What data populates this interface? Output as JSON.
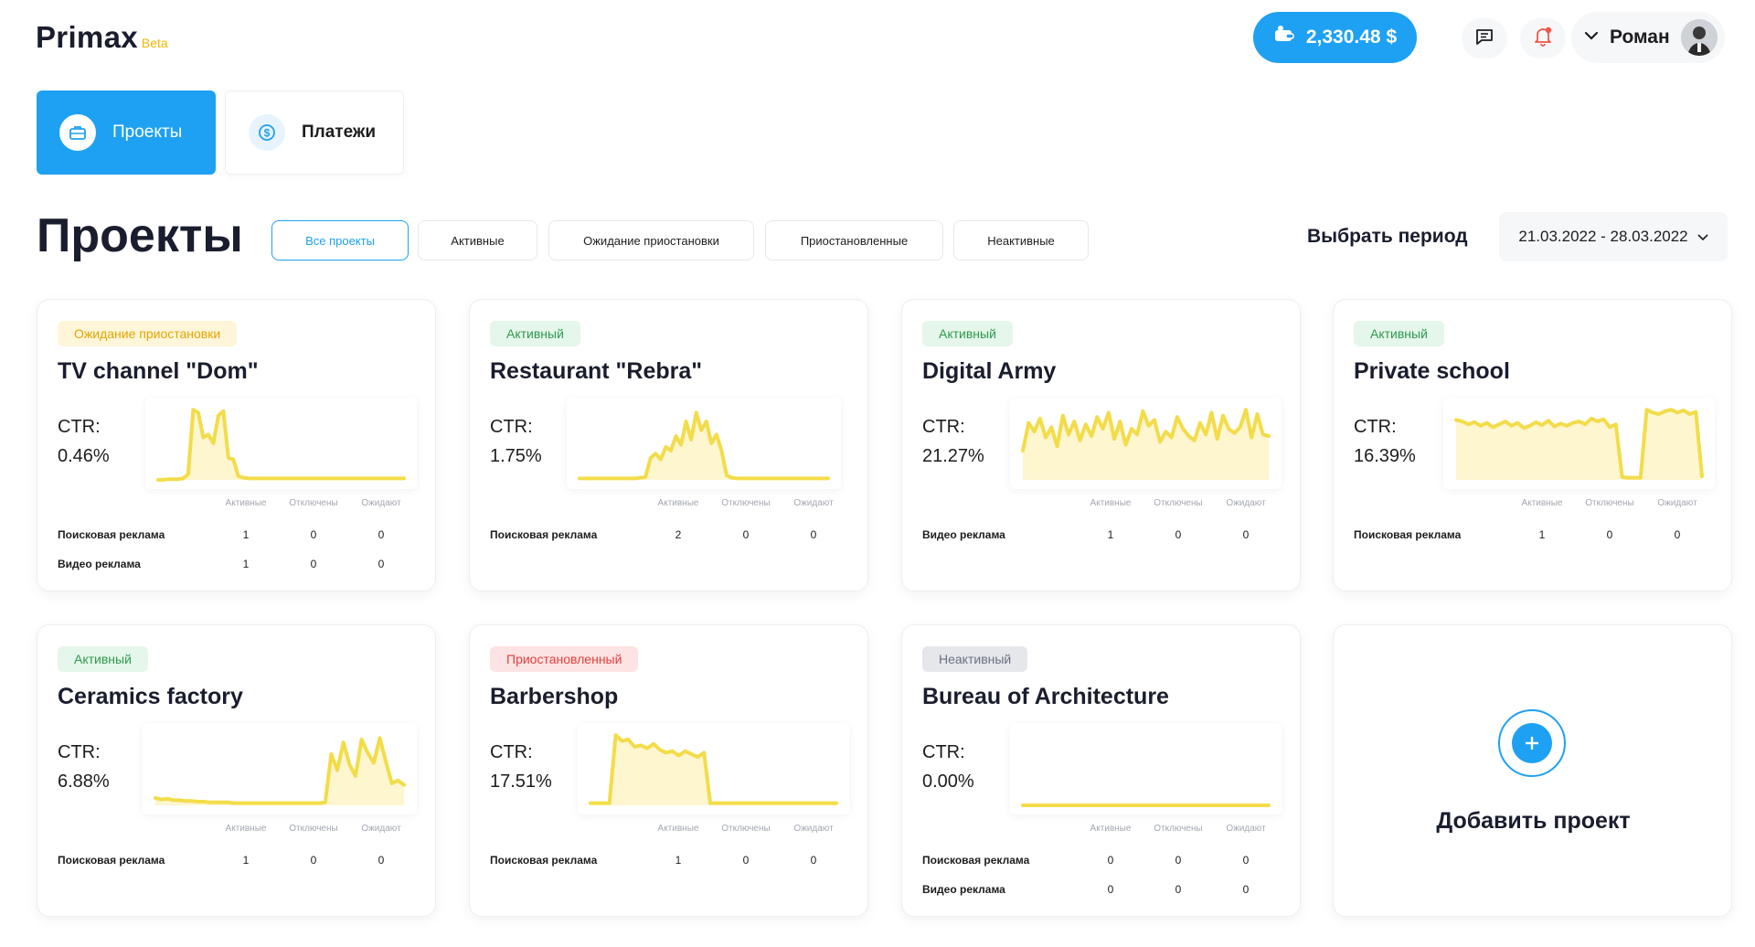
{
  "header": {
    "logo": "Primax",
    "logo_badge": "Beta",
    "balance": "2,330.48 $",
    "user_name": "Роман"
  },
  "nav": {
    "projects": "Проекты",
    "payments": "Платежи"
  },
  "page": {
    "title": "Проекты",
    "filters": [
      "Все проекты",
      "Активные",
      "Ожидание приостановки",
      "Приостановленные",
      "Неактивные"
    ],
    "period_label": "Выбрать период",
    "period_value": "21.03.2022 - 28.03.2022"
  },
  "columns": [
    "Активные",
    "Отключены",
    "Ожидают"
  ],
  "colors": {
    "accent": "#1ea1f2",
    "chart_line": "#f3dc4a",
    "chart_fill": "#fdf6cf"
  },
  "projects": [
    {
      "status": "Ожидание приостановки",
      "status_kind": "wait",
      "title": "TV channel \"Dom\"",
      "ctr_label": "CTR:",
      "ctr": "0.46%",
      "rows": [
        {
          "label": "Поисковая реклама",
          "values": [
            "1",
            "0",
            "0"
          ]
        },
        {
          "label": "Видео реклама",
          "values": [
            "1",
            "0",
            "0"
          ]
        }
      ],
      "sparkline": [
        0,
        0,
        1,
        1,
        1,
        2,
        8,
        96,
        92,
        58,
        62,
        50,
        88,
        94,
        30,
        28,
        5,
        3,
        2,
        2,
        2,
        2,
        2,
        2,
        2,
        2,
        2,
        2,
        2,
        2,
        2,
        2,
        2,
        2,
        2,
        2,
        2,
        2,
        2,
        2,
        2,
        2,
        2,
        2,
        2,
        2,
        2,
        2,
        2,
        2
      ]
    },
    {
      "status": "Активный",
      "status_kind": "active",
      "title": "Restaurant \"Rebra\"",
      "ctr_label": "CTR:",
      "ctr": "1.75%",
      "rows": [
        {
          "label": "Поисковая реклама",
          "values": [
            "2",
            "0",
            "0"
          ]
        }
      ],
      "sparkline": [
        2,
        2,
        2,
        2,
        2,
        2,
        2,
        2,
        2,
        2,
        2,
        2,
        3,
        4,
        30,
        36,
        28,
        45,
        40,
        60,
        48,
        80,
        55,
        92,
        68,
        80,
        50,
        62,
        40,
        6,
        3,
        2,
        2,
        2,
        2,
        2,
        2,
        2,
        2,
        2,
        2,
        2,
        2,
        2,
        2,
        2,
        2,
        2,
        2,
        2
      ]
    },
    {
      "status": "Активный",
      "status_kind": "active",
      "title": "Digital Army",
      "ctr_label": "CTR:",
      "ctr": "21.27%",
      "rows": [
        {
          "label": "Видео реклама",
          "values": [
            "1",
            "0",
            "0"
          ]
        }
      ],
      "sparkline": [
        40,
        78,
        66,
        84,
        58,
        72,
        46,
        88,
        62,
        80,
        54,
        76,
        60,
        86,
        70,
        92,
        56,
        80,
        48,
        70,
        62,
        94,
        74,
        82,
        52,
        66,
        58,
        86,
        70,
        60,
        54,
        78,
        62,
        92,
        56,
        88,
        70,
        64,
        72,
        96,
        58,
        90,
        62,
        60
      ]
    },
    {
      "status": "Активный",
      "status_kind": "active",
      "title": "Private school",
      "ctr_label": "CTR:",
      "ctr": "16.39%",
      "rows": [
        {
          "label": "Поисковая реклама",
          "values": [
            "1",
            "0",
            "0"
          ]
        }
      ],
      "sparkline": [
        82,
        80,
        76,
        79,
        74,
        78,
        72,
        76,
        80,
        74,
        78,
        71,
        74,
        79,
        75,
        81,
        73,
        77,
        74,
        78,
        80,
        76,
        84,
        80,
        83,
        72,
        76,
        4,
        3,
        3,
        3,
        96,
        92,
        90,
        94,
        96,
        92,
        95,
        90,
        93,
        5
      ]
    },
    {
      "status": "Активный",
      "status_kind": "active",
      "title": "Ceramics factory",
      "ctr_label": "CTR:",
      "ctr": "6.88%",
      "rows": [
        {
          "label": "Поисковая реклама",
          "values": [
            "1",
            "0",
            "0"
          ]
        }
      ],
      "sparkline": [
        10,
        8,
        9,
        7,
        7,
        6,
        6,
        5,
        5,
        4,
        4,
        4,
        4,
        3,
        3,
        3,
        3,
        3,
        3,
        3,
        3,
        3,
        3,
        3,
        3,
        3,
        3,
        3,
        4,
        70,
        48,
        86,
        56,
        40,
        90,
        72,
        58,
        92,
        60,
        30,
        34,
        28
      ]
    },
    {
      "status": "Приостановленный",
      "status_kind": "paused",
      "title": "Barbershop",
      "ctr_label": "CTR:",
      "ctr": "17.51%",
      "rows": [
        {
          "label": "Поисковая реклама",
          "values": [
            "1",
            "0",
            "0"
          ]
        }
      ],
      "sparkline": [
        3,
        3,
        3,
        3,
        96,
        88,
        90,
        80,
        82,
        78,
        84,
        76,
        72,
        74,
        68,
        74,
        70,
        66,
        72,
        3,
        3,
        3,
        3,
        3,
        3,
        3,
        3,
        3,
        3,
        3,
        3,
        3,
        3,
        3,
        3,
        3,
        3,
        3,
        3,
        3
      ]
    },
    {
      "status": "Неактивный",
      "status_kind": "inactive",
      "title": "Bureau of Architecture",
      "ctr_label": "CTR:",
      "ctr": "0.00%",
      "rows": [
        {
          "label": "Поисковая реклама",
          "values": [
            "0",
            "0",
            "0"
          ]
        },
        {
          "label": "Видео реклама",
          "values": [
            "0",
            "0",
            "0"
          ]
        }
      ],
      "sparkline": [
        0,
        0,
        0,
        0,
        0,
        0,
        0,
        0,
        0,
        0,
        0,
        0,
        0,
        0,
        0,
        0,
        0,
        0,
        0,
        0
      ]
    }
  ],
  "add_project": "Добавить проект"
}
